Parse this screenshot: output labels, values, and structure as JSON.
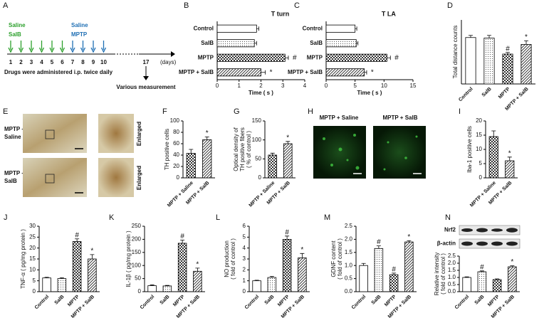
{
  "timeline": {
    "panel": "A",
    "group1": [
      "Saline",
      "SalB"
    ],
    "group2": [
      "Saline",
      "MPTP"
    ],
    "days": [
      1,
      2,
      3,
      4,
      5,
      6,
      7,
      8,
      9,
      10
    ],
    "final_day": 17,
    "unit": "(days)",
    "note": "Drugs were administered i.p. twice daily",
    "final_label": "Various measurement"
  },
  "images_e": {
    "panel": "E",
    "rows": [
      [
        "MPTP +",
        "Saline"
      ],
      [
        "MPTP +",
        "SalB"
      ]
    ],
    "zoom_label": "Enlarged"
  },
  "images_h": {
    "panel": "H",
    "labels": [
      "MPTP + Saline",
      "MPTP + SalB"
    ]
  },
  "chart_data": [
    {
      "type": "hbar",
      "panel": "B",
      "title": "T turn",
      "categories": [
        "Control",
        "SalB",
        "MPTP",
        "MPTP + SalB"
      ],
      "values": [
        1.8,
        1.7,
        3.1,
        2.0
      ],
      "errors": [
        0.1,
        0.1,
        0.15,
        0.2
      ],
      "annotations": [
        null,
        null,
        "#",
        "*"
      ],
      "xlim": [
        0,
        4
      ],
      "xticks": [
        0,
        1,
        2,
        3,
        4
      ],
      "xlabel": "Time ( s )"
    },
    {
      "type": "hbar",
      "panel": "C",
      "title": "T LA",
      "categories": [
        "Control",
        "SalB",
        "MPTP",
        "MPTP + SalB"
      ],
      "values": [
        5.0,
        5.2,
        10.5,
        6.6
      ],
      "errors": [
        0.3,
        0.3,
        0.6,
        0.4
      ],
      "annotations": [
        null,
        null,
        "#",
        "*"
      ],
      "xlim": [
        0,
        15
      ],
      "xticks": [
        0,
        5,
        10,
        15
      ],
      "xlabel": "Time ( s )"
    },
    {
      "type": "bar",
      "panel": "D",
      "ylabel": [
        "Total distance counts"
      ],
      "categories": [
        "Control",
        "SalB",
        "MPTP",
        "MPTP + SalB"
      ],
      "values": [
        8700,
        8600,
        5600,
        7400
      ],
      "errors": [
        400,
        500,
        300,
        700
      ],
      "annotations": [
        null,
        null,
        "#",
        "*"
      ],
      "ylim": [
        0,
        12000
      ]
    },
    {
      "type": "bar",
      "panel": "F",
      "ylabel": [
        "TH positive cells"
      ],
      "categories": [
        "MPTP + Saline",
        "MPTP + SalB"
      ],
      "values": [
        43,
        67
      ],
      "errors": [
        7,
        5
      ],
      "annotations": [
        null,
        "*"
      ],
      "ylim": [
        0,
        100
      ],
      "yticks": [
        0,
        20,
        40,
        60,
        80,
        100
      ]
    },
    {
      "type": "bar",
      "panel": "G",
      "ylabel": [
        "Optical density of",
        "TH positive fibers",
        "( % of control )"
      ],
      "categories": [
        "MPTP + Saline",
        "MPTP + SalB"
      ],
      "values": [
        60,
        90
      ],
      "errors": [
        5,
        6
      ],
      "annotations": [
        null,
        "*"
      ],
      "ylim": [
        0,
        150
      ],
      "yticks": [
        0,
        50,
        100,
        150
      ]
    },
    {
      "type": "bar",
      "panel": "I",
      "ylabel": [
        "Iba-1 positive cells"
      ],
      "categories": [
        "MPTP + Saline",
        "MPTP + SalB"
      ],
      "values": [
        14.5,
        6
      ],
      "errors": [
        2,
        1.3
      ],
      "annotations": [
        null,
        "*"
      ],
      "ylim": [
        0,
        20
      ],
      "yticks": [
        0,
        5,
        10,
        15,
        20
      ]
    },
    {
      "type": "bar",
      "panel": "J",
      "ylabel": [
        "TNF-α ( pg/mg protein )"
      ],
      "categories": [
        "Control",
        "SalB",
        "MPTP",
        "MPTP + SalB"
      ],
      "values": [
        6.3,
        6,
        23,
        15
      ],
      "errors": [
        0.3,
        0.4,
        1.2,
        2
      ],
      "annotations": [
        null,
        null,
        "#",
        "*"
      ],
      "ylim": [
        0,
        30
      ],
      "yticks": [
        0,
        5,
        10,
        15,
        20,
        25,
        30
      ]
    },
    {
      "type": "bar",
      "panel": "K",
      "ylabel": [
        "IL-1β ( pg/mg protein )"
      ],
      "categories": [
        "Control",
        "SalB",
        "MPTP",
        "MPTP + SalB"
      ],
      "values": [
        23,
        22,
        185,
        78
      ],
      "errors": [
        3,
        2,
        12,
        12
      ],
      "annotations": [
        null,
        null,
        "#",
        "*"
      ],
      "ylim": [
        0,
        250
      ],
      "yticks": [
        0,
        50,
        100,
        150,
        200,
        250
      ]
    },
    {
      "type": "bar",
      "panel": "L",
      "ylabel": [
        "NO production",
        "( fold of control )"
      ],
      "categories": [
        "Control",
        "SalB",
        "MPTP",
        "MPTP + SalB"
      ],
      "values": [
        1,
        1.3,
        4.8,
        3.1
      ],
      "errors": [
        0.05,
        0.1,
        0.3,
        0.4
      ],
      "annotations": [
        null,
        null,
        "#",
        "*"
      ],
      "ylim": [
        0,
        6
      ],
      "yticks": [
        0,
        1,
        2,
        3,
        4,
        5,
        6
      ]
    },
    {
      "type": "bar",
      "panel": "M",
      "ylabel": [
        "GDNF content",
        "( fold of control )"
      ],
      "categories": [
        "Control",
        "SalB",
        "MPTP",
        "MPTP + SalB"
      ],
      "values": [
        1.0,
        1.65,
        0.65,
        1.9
      ],
      "errors": [
        0.08,
        0.1,
        0.06,
        0.05
      ],
      "annotations": [
        null,
        "#",
        "#",
        "*"
      ],
      "ylim": [
        0,
        2.5
      ],
      "yticks": [
        {
          "value": 0,
          "label": "0.0"
        },
        0.5,
        {
          "value": 1,
          "label": "1.0"
        },
        1.5,
        {
          "value": 2,
          "label": "2.0"
        },
        2.5
      ]
    },
    {
      "type": "bar",
      "panel": "N",
      "blot_bands": [
        "Nrf2",
        "β-actin"
      ],
      "ylabel": [
        "Relative intensity",
        "( fold of control )"
      ],
      "categories": [
        "Control",
        "SalB",
        "MPTP",
        "MPTP + SalB"
      ],
      "values": [
        1.0,
        1.4,
        0.85,
        1.75
      ],
      "errors": [
        0.04,
        0.06,
        0.05,
        0.07
      ],
      "annotations": [
        null,
        "#",
        null,
        "*"
      ],
      "ylim": [
        0,
        2.5
      ],
      "yticks": [
        {
          "value": 0,
          "label": "0.0"
        },
        0.5,
        {
          "value": 1,
          "label": "1.0"
        },
        1.5,
        {
          "value": 2,
          "label": "2.0"
        },
        2.5
      ]
    }
  ]
}
